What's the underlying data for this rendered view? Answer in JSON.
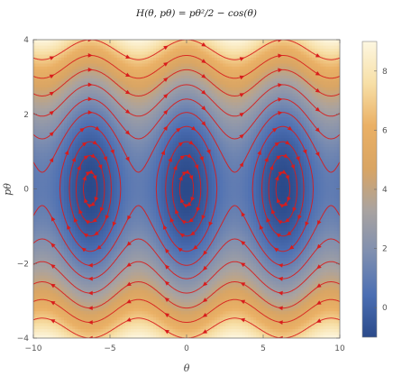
{
  "chart_data": {
    "type": "heatmap",
    "title": "H(θ, pθ) = pθ²/2 − cos(θ)",
    "xlabel": "θ",
    "ylabel": "pθ",
    "xlim": [
      -10,
      10
    ],
    "ylim": [
      -4,
      4
    ],
    "x_ticks": [
      -10,
      -5,
      0,
      5,
      10
    ],
    "y_ticks": [
      -4,
      -2,
      0,
      2,
      4
    ],
    "colorbar": {
      "range": [
        -1,
        9
      ],
      "ticks": [
        0,
        2,
        4,
        6,
        8
      ],
      "colors": [
        "#2b4a8a",
        "#4c6fb3",
        "#7f8fb0",
        "#a9a3a0",
        "#d9a564",
        "#eab065",
        "#f7dfa6",
        "#fdf7e1"
      ]
    },
    "contour_levels": [
      -0.9,
      -0.6,
      -0.2,
      0.4,
      1.1,
      1.9,
      2.9,
      4.1,
      5.4,
      7.0
    ],
    "stream_color": "#d81c1c",
    "grid": false
  }
}
